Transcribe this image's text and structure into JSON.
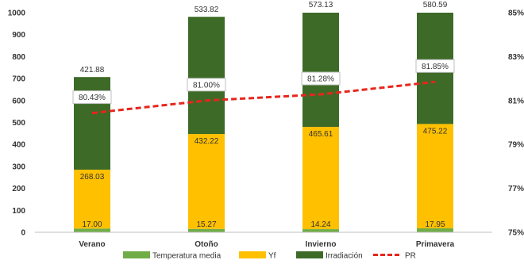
{
  "chart_data": {
    "type": "bar",
    "stacked": true,
    "categories": [
      "Verano",
      "Otoño",
      "Invierno",
      "Primavera"
    ],
    "series": [
      {
        "name": "Temperatura media",
        "values": [
          17.0,
          15.27,
          14.24,
          17.95
        ],
        "color": "#70ad47",
        "labels": [
          "17.00",
          "15.27",
          "14.24",
          "17.95"
        ]
      },
      {
        "name": "Yf",
        "values": [
          268.03,
          432.22,
          465.61,
          475.22
        ],
        "color": "#ffc000",
        "labels": [
          "268.03",
          "432.22",
          "465.61",
          "475.22"
        ]
      },
      {
        "name": "Irradiación",
        "values": [
          421.88,
          533.82,
          573.13,
          580.59
        ],
        "color": "#3d6b27",
        "labels": [
          "421.88",
          "533.82",
          "573.13",
          "580.59"
        ]
      }
    ],
    "line_series": {
      "name": "PR",
      "axis": "secondary",
      "values": [
        80.43,
        81.0,
        81.28,
        81.85
      ],
      "labels": [
        "80.43%",
        "81.00%",
        "81.28%",
        "81.85%"
      ],
      "color": "#e8251c",
      "style": "dashed"
    },
    "ylim": [
      0,
      1000
    ],
    "yticks": [
      "0",
      "100",
      "200",
      "300",
      "400",
      "500",
      "600",
      "700",
      "800",
      "900",
      "1000"
    ],
    "y2lim": [
      75,
      85
    ],
    "y2ticks": [
      "75%",
      "77%",
      "79%",
      "81%",
      "83%",
      "85%"
    ],
    "legend_position": "bottom"
  }
}
